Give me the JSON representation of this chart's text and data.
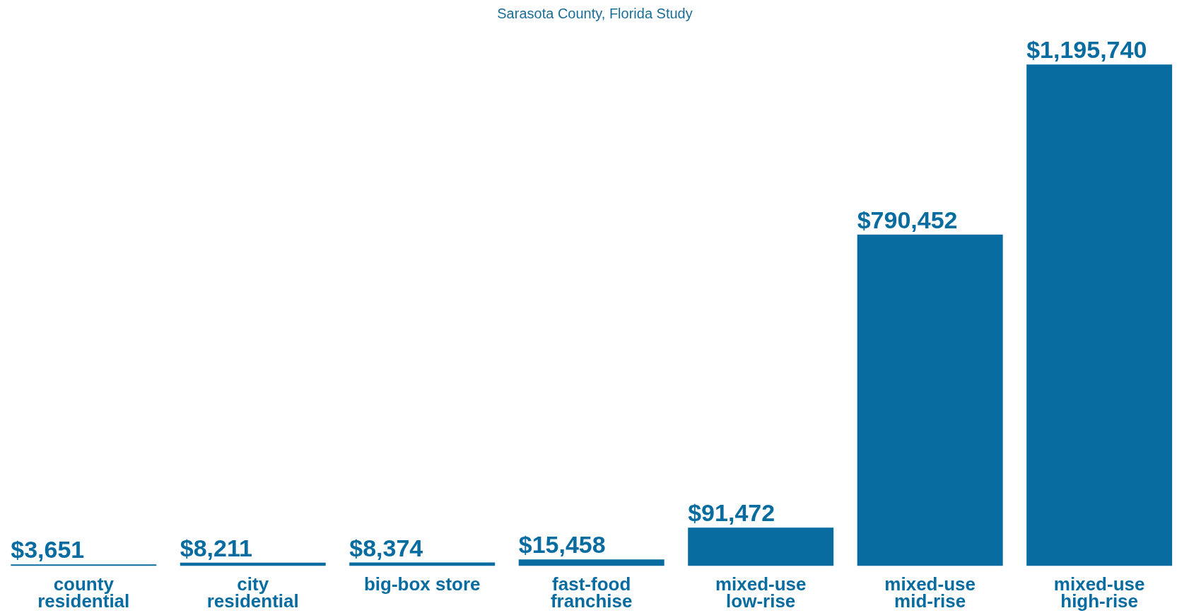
{
  "chart_data": {
    "type": "bar",
    "subtitle": "Sarasota County, Florida Study",
    "categories": [
      "county\nresidential",
      "city\nresidential",
      "big-box store",
      "fast-food\nfranchise",
      "mixed-use\nlow-rise",
      "mixed-use\nmid-rise",
      "mixed-use\nhigh-rise"
    ],
    "values": [
      3651,
      8211,
      8374,
      15458,
      91472,
      790452,
      1195740
    ],
    "value_labels": [
      "$3,651",
      "$8,211",
      "$8,374",
      "$15,458",
      "$91,472",
      "$790,452",
      "$1,195,740"
    ],
    "color": "#086ca0",
    "grid": false
  }
}
